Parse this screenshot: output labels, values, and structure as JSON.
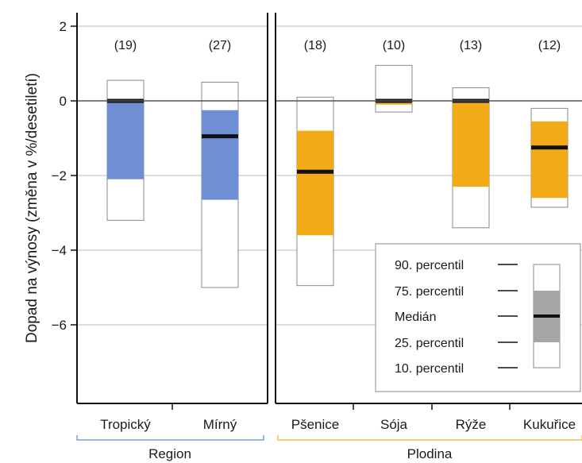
{
  "colors": {
    "region": "#6f8fd4",
    "crop": "#f2ab16",
    "median": "#111111",
    "outer_box": "#ffffff",
    "box_stroke": "#8a8a8a",
    "grid": "#b9b9c9",
    "axis": "#111111",
    "legend_box": "#a6a6a6",
    "region_bracket": "#7f9fd8",
    "crop_bracket": "#efc24a"
  },
  "chart_data": {
    "type": "box",
    "ylabel": "Dopad na výnosy (změna v %/desetiletí)",
    "ylim": [
      -8,
      2.3
    ],
    "yticks": [
      2,
      0,
      -2,
      -4,
      -6
    ],
    "ytick_labels": [
      "2",
      "0",
      "−2",
      "−4",
      "−6"
    ],
    "zero_line": 0,
    "grid": true,
    "panels": [
      {
        "group_label": "Region",
        "color_key": "region",
        "boxes": [
          {
            "category": "Tropický",
            "count_label": "(19)",
            "p10": -3.2,
            "p25": -2.1,
            "median": 0.0,
            "p75": 0.0,
            "p90": 0.55
          },
          {
            "category": "Mírný",
            "count_label": "(27)",
            "p10": -5.0,
            "p25": -2.65,
            "median": -0.95,
            "p75": -0.25,
            "p90": 0.5
          }
        ]
      },
      {
        "group_label": "Plodina",
        "color_key": "crop",
        "boxes": [
          {
            "category": "Pšenice",
            "count_label": "(18)",
            "p10": -4.95,
            "p25": -3.6,
            "median": -1.9,
            "p75": -0.8,
            "p90": 0.1
          },
          {
            "category": "Sója",
            "count_label": "(10)",
            "p10": -0.3,
            "p25": -0.1,
            "median": 0.0,
            "p75": 0.0,
            "p90": 0.95
          },
          {
            "category": "Rýže",
            "count_label": "(13)",
            "p10": -3.4,
            "p25": -2.3,
            "median": 0.0,
            "p75": 0.0,
            "p90": 0.35
          },
          {
            "category": "Kukuřice",
            "count_label": "(12)",
            "p10": -2.85,
            "p25": -2.6,
            "median": -1.25,
            "p75": -0.55,
            "p90": -0.2
          }
        ]
      }
    ],
    "legend": {
      "placement": "bottom-right",
      "entries": [
        "90. percentil",
        "75. percentil",
        "Medián",
        "25. percentil",
        "10. percentil"
      ]
    }
  }
}
